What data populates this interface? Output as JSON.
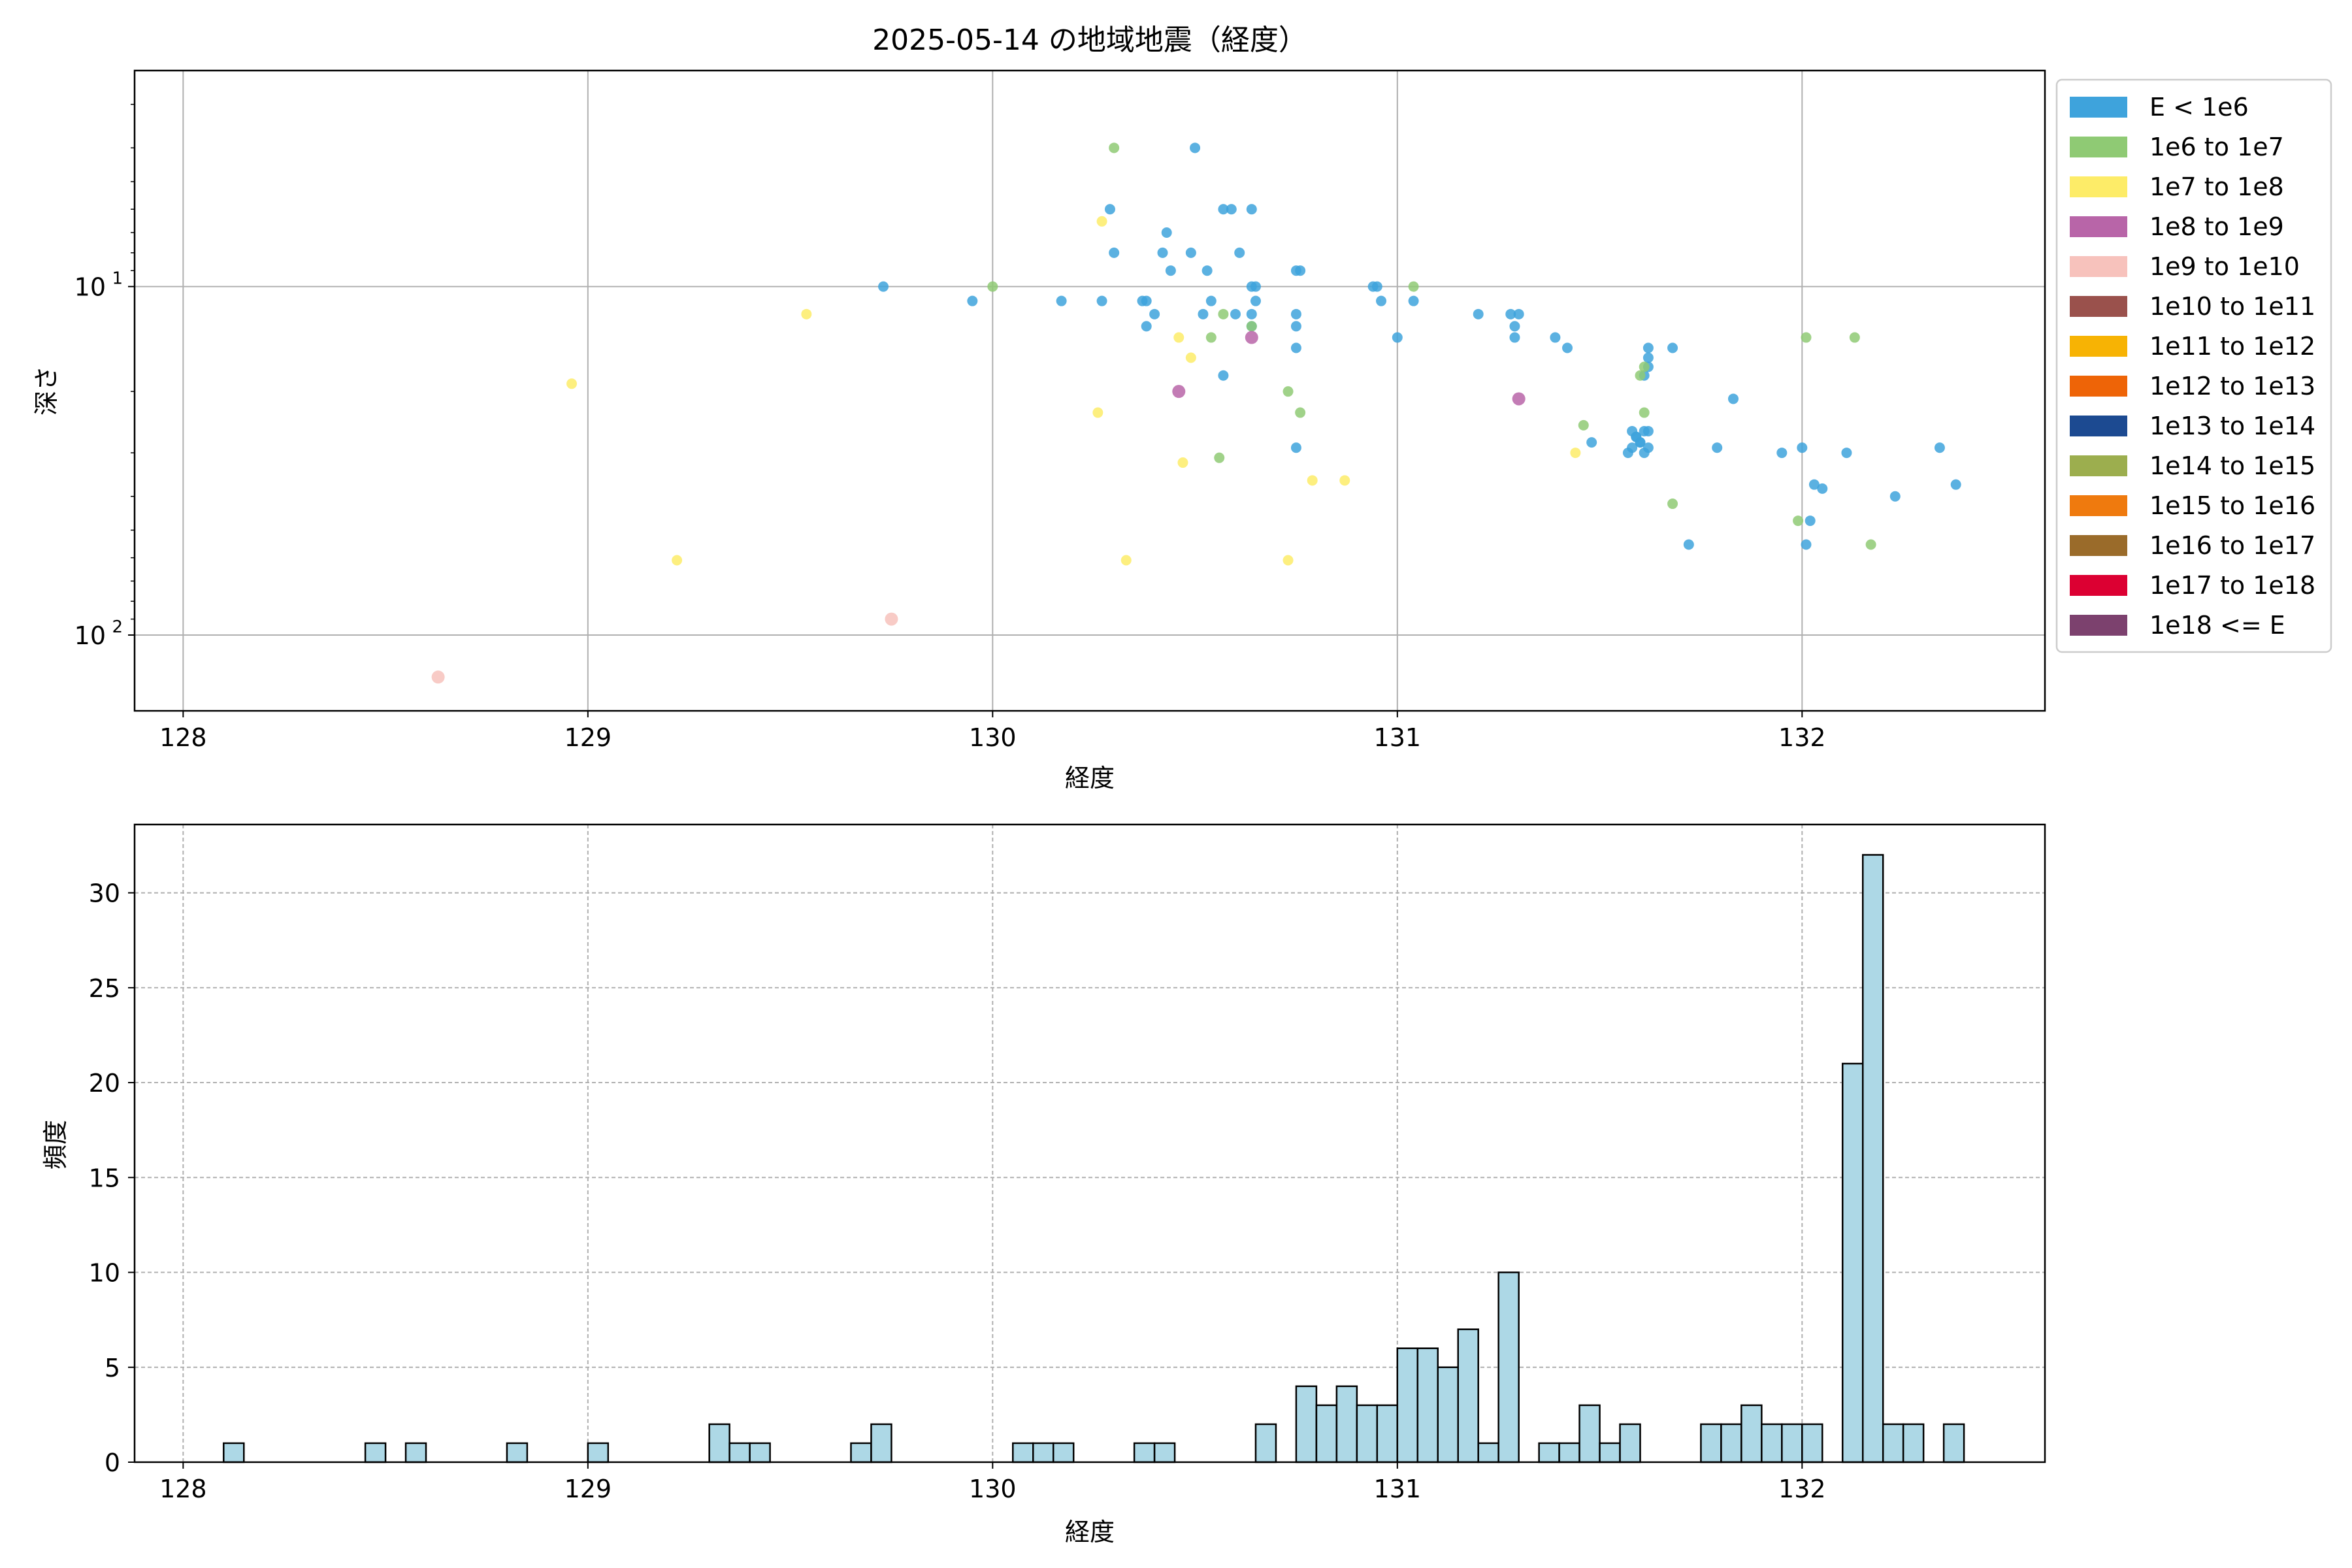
{
  "figure": {
    "title": "2025-05-14 の地域地震（経度）"
  },
  "chart_data": [
    {
      "type": "scatter",
      "title": "2025-05-14 の地域地震（経度）",
      "xlabel": "経度",
      "ylabel": "深さ",
      "xlim": [
        127.88,
        132.6
      ],
      "ylim": [
        165,
        2.4
      ],
      "y_scale": "log",
      "y_inverted": true,
      "x_ticks": [
        "128",
        "129",
        "130",
        "131",
        "132"
      ],
      "y_ticks": [
        {
          "value": 10,
          "base": "10",
          "exp": "1"
        },
        {
          "value": 100,
          "base": "10",
          "exp": "2"
        }
      ],
      "grid": true,
      "legend_position": "outside-right",
      "legend": [
        {
          "label": "E < 1e6",
          "color": "#3ea3dc"
        },
        {
          "label": "1e6 to 1e7",
          "color": "#8fca74"
        },
        {
          "label": "1e7 to 1e8",
          "color": "#fdec68"
        },
        {
          "label": "1e8 to 1e9",
          "color": "#b865a8"
        },
        {
          "label": "1e9 to 1e10",
          "color": "#f7c2bc"
        },
        {
          "label": "1e10 to 1e11",
          "color": "#9a514c"
        },
        {
          "label": "1e11 to 1e12",
          "color": "#f7b304"
        },
        {
          "label": "1e12 to 1e13",
          "color": "#ee6407"
        },
        {
          "label": "1e13 to 1e14",
          "color": "#1c4a91"
        },
        {
          "label": "1e14 to 1e15",
          "color": "#9cae4e"
        },
        {
          "label": "1e15 to 1e16",
          "color": "#ef7a0e"
        },
        {
          "label": "1e16 to 1e17",
          "color": "#9a6b2a"
        },
        {
          "label": "1e17 to 1e18",
          "color": "#dc0032"
        },
        {
          "label": "1e18 <= E",
          "color": "#7c416e"
        }
      ],
      "series": [
        {
          "name": "E < 1e6",
          "x": [
            129.73,
            129.95,
            130.17,
            130.27,
            130.29,
            130.3,
            130.37,
            130.38,
            130.38,
            130.4,
            130.42,
            130.43,
            130.44,
            130.49,
            130.5,
            130.52,
            130.53,
            130.54,
            130.57,
            130.57,
            130.59,
            130.6,
            130.61,
            130.64,
            130.64,
            130.65,
            130.64,
            130.64,
            130.65,
            130.75,
            130.75,
            130.75,
            130.75,
            130.76,
            130.75,
            130.94,
            130.96,
            130.95,
            131.0,
            131.04,
            131.2,
            131.28,
            131.29,
            131.29,
            131.3,
            131.39,
            131.42,
            131.48,
            131.58,
            131.59,
            131.6,
            131.6,
            131.61,
            131.62,
            131.62,
            131.62,
            131.62,
            131.61,
            131.59,
            131.57,
            131.58,
            131.61,
            131.62,
            131.68,
            131.72,
            131.83,
            131.79,
            131.95,
            132.0,
            132.01,
            132.02,
            132.03,
            132.05,
            132.11,
            132.23,
            132.34,
            132.38
          ],
          "y": [
            10,
            11,
            11,
            11,
            6,
            8,
            11,
            11,
            13,
            12,
            8,
            7,
            9,
            8,
            4,
            12,
            9,
            11,
            6,
            18,
            6,
            12,
            8,
            6,
            10,
            11,
            12,
            13,
            10,
            9,
            12,
            13,
            15,
            9,
            29,
            10,
            11,
            10,
            14,
            11,
            12,
            12,
            13,
            14,
            12,
            14,
            15,
            28,
            26,
            27,
            28,
            28,
            26,
            26,
            15,
            16,
            17,
            18,
            27,
            30,
            29,
            30,
            29,
            15,
            55,
            21,
            29,
            30,
            29,
            55,
            47,
            37,
            38,
            30,
            40,
            29,
            37
          ],
          "color": "#3ea3dc"
        },
        {
          "name": "1e6 to 1e7",
          "x": [
            130.3,
            130.0,
            130.54,
            130.57,
            130.56,
            130.64,
            130.73,
            130.76,
            131.04,
            131.46,
            131.61,
            131.6,
            131.61,
            131.68,
            131.99,
            132.01,
            132.13,
            132.17
          ],
          "y": [
            4,
            10,
            14,
            12,
            31,
            13,
            20,
            23,
            10,
            25,
            17,
            18,
            23,
            42,
            47,
            14,
            14,
            55
          ],
          "color": "#8fca74"
        },
        {
          "name": "1e7 to 1e8",
          "x": [
            128.96,
            129.22,
            129.54,
            130.26,
            130.27,
            130.33,
            130.46,
            130.47,
            130.49,
            130.73,
            130.79,
            130.87,
            131.44
          ],
          "y": [
            19,
            61,
            12,
            23,
            6.5,
            61,
            14,
            32,
            16,
            61,
            36,
            36,
            30
          ],
          "color": "#fdec68"
        },
        {
          "name": "1e8 to 1e9",
          "x": [
            130.46,
            130.64,
            131.3
          ],
          "y": [
            20,
            14,
            21
          ],
          "color": "#b865a8"
        },
        {
          "name": "1e9 to 1e10",
          "x": [
            128.63,
            129.75
          ],
          "y": [
            132,
            90
          ],
          "color": "#f7c2bc"
        }
      ]
    },
    {
      "type": "bar",
      "title": "",
      "xlabel": "経度",
      "ylabel": "頻度",
      "xlim": [
        127.88,
        132.6
      ],
      "ylim": [
        0,
        33.6
      ],
      "x_ticks": [
        "128",
        "129",
        "130",
        "131",
        "132"
      ],
      "y_ticks": [
        "0",
        "5",
        "10",
        "15",
        "20",
        "25",
        "30"
      ],
      "grid": true,
      "bar_color": "#add8e6",
      "bin_edges": [
        128.0,
        132.4
      ],
      "bin_count": 88,
      "counts": [
        0,
        0,
        1,
        0,
        0,
        0,
        0,
        0,
        0,
        1,
        0,
        1,
        0,
        0,
        0,
        0,
        1,
        0,
        0,
        0,
        1,
        0,
        0,
        0,
        0,
        0,
        2,
        1,
        1,
        0,
        0,
        0,
        0,
        1,
        2,
        0,
        0,
        0,
        0,
        0,
        0,
        1,
        1,
        1,
        0,
        0,
        0,
        1,
        1,
        0,
        0,
        0,
        0,
        2,
        0,
        4,
        3,
        4,
        3,
        3,
        6,
        6,
        5,
        7,
        1,
        10,
        0,
        1,
        1,
        3,
        1,
        2,
        0,
        0,
        0,
        2,
        2,
        3,
        2,
        2,
        2,
        0,
        21,
        32,
        2,
        2,
        0,
        2
      ]
    }
  ]
}
